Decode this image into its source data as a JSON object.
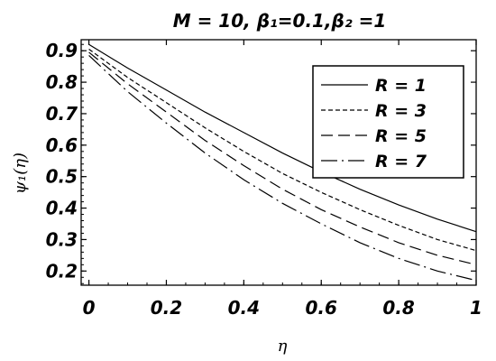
{
  "chart_data": {
    "type": "line",
    "title": "M  =  10, β₁=0.1,β₂ =1",
    "xlabel": "η",
    "ylabel": "ψ₁(η)",
    "xlim": [
      -0.02,
      1.0
    ],
    "ylim": [
      0.155,
      0.935
    ],
    "x_ticks": [
      "0",
      "0.2",
      "0.4",
      "0.6",
      "0.8",
      "1"
    ],
    "y_ticks": [
      "0.2",
      "0.3",
      "0.4",
      "0.5",
      "0.6",
      "0.7",
      "0.8",
      "0.9"
    ],
    "grid": false,
    "legend_position": "top-right",
    "x": [
      0,
      0.1,
      0.2,
      0.3,
      0.4,
      0.5,
      0.6,
      0.7,
      0.8,
      0.9,
      1.0
    ],
    "series": [
      {
        "name": "R = 1",
        "style": "solid",
        "values": [
          0.92,
          0.845,
          0.775,
          0.705,
          0.64,
          0.575,
          0.515,
          0.46,
          0.41,
          0.365,
          0.325
        ]
      },
      {
        "name": "R = 3",
        "style": "short-dash",
        "values": [
          0.905,
          0.815,
          0.735,
          0.655,
          0.58,
          0.51,
          0.45,
          0.395,
          0.345,
          0.3,
          0.265
        ]
      },
      {
        "name": "R = 5",
        "style": "long-dash",
        "values": [
          0.895,
          0.795,
          0.705,
          0.615,
          0.535,
          0.46,
          0.395,
          0.34,
          0.29,
          0.25,
          0.22
        ]
      },
      {
        "name": "R = 7",
        "style": "dash-dot",
        "values": [
          0.885,
          0.77,
          0.67,
          0.575,
          0.49,
          0.415,
          0.35,
          0.29,
          0.24,
          0.2,
          0.17
        ]
      }
    ]
  }
}
